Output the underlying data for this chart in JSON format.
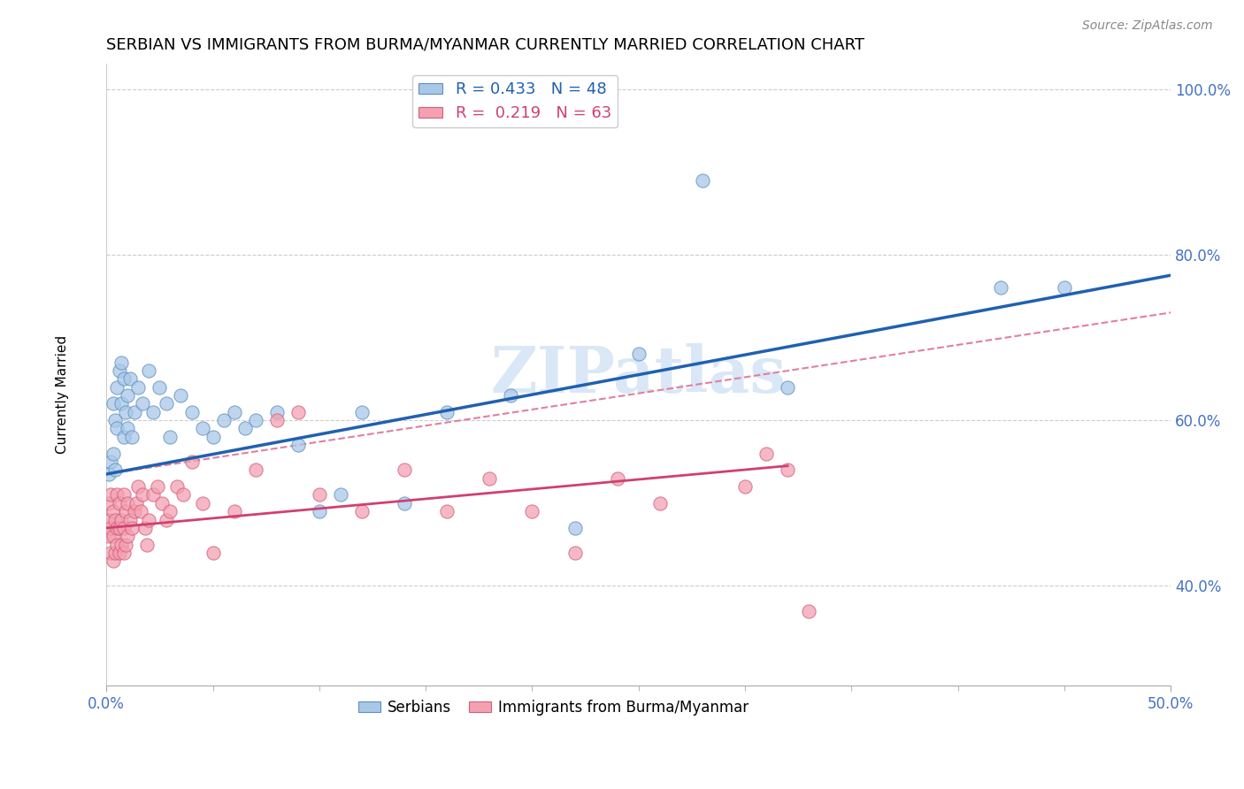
{
  "title": "SERBIAN VS IMMIGRANTS FROM BURMA/MYANMAR CURRENTLY MARRIED CORRELATION CHART",
  "source": "Source: ZipAtlas.com",
  "ylabel": "Currently Married",
  "xlim": [
    0.0,
    0.5
  ],
  "ylim": [
    0.28,
    1.03
  ],
  "ytick_vals": [
    0.4,
    0.6,
    0.8,
    1.0
  ],
  "ytick_labels": [
    "40.0%",
    "60.0%",
    "80.0%",
    "100.0%"
  ],
  "blue_color": "#a8c8e8",
  "pink_color": "#f4a0b0",
  "blue_edge_color": "#6090c0",
  "pink_edge_color": "#d06080",
  "blue_line_color": "#2060b0",
  "pink_line_color": "#d04070",
  "diag_line_color": "#e080a0",
  "tick_color": "#4472c4",
  "watermark_color": "#c0d8f0",
  "legend_blue_label": "R = 0.433   N = 48",
  "legend_pink_label": "R =  0.219   N = 63",
  "blue_line_x0": 0.0,
  "blue_line_x1": 0.5,
  "blue_line_y0": 0.535,
  "blue_line_y1": 0.775,
  "pink_line_x0": 0.0,
  "pink_line_x1": 0.32,
  "pink_line_y0": 0.47,
  "pink_line_y1": 0.545,
  "diag_line_x0": 0.0,
  "diag_line_x1": 0.5,
  "diag_line_y0": 0.535,
  "diag_line_y1": 0.73,
  "blue_scatter_x": [
    0.001,
    0.002,
    0.003,
    0.003,
    0.004,
    0.004,
    0.005,
    0.005,
    0.006,
    0.007,
    0.007,
    0.008,
    0.008,
    0.009,
    0.01,
    0.01,
    0.011,
    0.012,
    0.013,
    0.015,
    0.017,
    0.02,
    0.022,
    0.025,
    0.028,
    0.03,
    0.035,
    0.04,
    0.045,
    0.05,
    0.055,
    0.06,
    0.065,
    0.07,
    0.08,
    0.09,
    0.1,
    0.11,
    0.12,
    0.14,
    0.16,
    0.19,
    0.22,
    0.25,
    0.28,
    0.32,
    0.42,
    0.45
  ],
  "blue_scatter_y": [
    0.535,
    0.55,
    0.56,
    0.62,
    0.54,
    0.6,
    0.59,
    0.64,
    0.66,
    0.62,
    0.67,
    0.58,
    0.65,
    0.61,
    0.63,
    0.59,
    0.65,
    0.58,
    0.61,
    0.64,
    0.62,
    0.66,
    0.61,
    0.64,
    0.62,
    0.58,
    0.63,
    0.61,
    0.59,
    0.58,
    0.6,
    0.61,
    0.59,
    0.6,
    0.61,
    0.57,
    0.49,
    0.51,
    0.61,
    0.5,
    0.61,
    0.63,
    0.47,
    0.68,
    0.89,
    0.64,
    0.76,
    0.76
  ],
  "pink_scatter_x": [
    0.001,
    0.001,
    0.001,
    0.002,
    0.002,
    0.002,
    0.003,
    0.003,
    0.003,
    0.004,
    0.004,
    0.005,
    0.005,
    0.005,
    0.006,
    0.006,
    0.006,
    0.007,
    0.007,
    0.008,
    0.008,
    0.008,
    0.009,
    0.009,
    0.01,
    0.01,
    0.011,
    0.012,
    0.013,
    0.014,
    0.015,
    0.016,
    0.017,
    0.018,
    0.019,
    0.02,
    0.022,
    0.024,
    0.026,
    0.028,
    0.03,
    0.033,
    0.036,
    0.04,
    0.045,
    0.05,
    0.06,
    0.07,
    0.08,
    0.09,
    0.1,
    0.12,
    0.14,
    0.16,
    0.18,
    0.2,
    0.22,
    0.24,
    0.26,
    0.3,
    0.31,
    0.32,
    0.33
  ],
  "pink_scatter_y": [
    0.46,
    0.48,
    0.5,
    0.44,
    0.47,
    0.51,
    0.43,
    0.46,
    0.49,
    0.44,
    0.48,
    0.45,
    0.47,
    0.51,
    0.44,
    0.47,
    0.5,
    0.45,
    0.48,
    0.44,
    0.47,
    0.51,
    0.45,
    0.49,
    0.46,
    0.5,
    0.48,
    0.47,
    0.49,
    0.5,
    0.52,
    0.49,
    0.51,
    0.47,
    0.45,
    0.48,
    0.51,
    0.52,
    0.5,
    0.48,
    0.49,
    0.52,
    0.51,
    0.55,
    0.5,
    0.44,
    0.49,
    0.54,
    0.6,
    0.61,
    0.51,
    0.49,
    0.54,
    0.49,
    0.53,
    0.49,
    0.44,
    0.53,
    0.5,
    0.52,
    0.56,
    0.54,
    0.37
  ],
  "title_fontsize": 13,
  "axis_label_fontsize": 11,
  "tick_fontsize": 12,
  "source_fontsize": 10,
  "legend_fontsize": 13
}
